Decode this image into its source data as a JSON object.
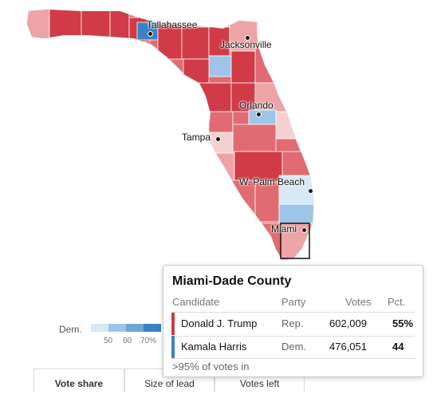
{
  "map": {
    "state": "Florida",
    "colors": {
      "rep_strong": "#d03b47",
      "rep_mid": "#e06b72",
      "rep_light": "#eea3a6",
      "rep_faint": "#f6cfd0",
      "dem_light": "#d7e8f6",
      "dem_mid": "#9ec5e8",
      "dem_strong": "#3b82c4",
      "boundary": "#ffffff",
      "highlight": "#121212"
    },
    "cities": [
      {
        "name": "Tallahassee"
      },
      {
        "name": "Jacksonville"
      },
      {
        "name": "Orlando"
      },
      {
        "name": "Tampa"
      },
      {
        "name": "W. Palm Beach"
      },
      {
        "name": "Miami"
      }
    ],
    "highlighted_county": "Miami-Dade County"
  },
  "legend": {
    "dem_label": "Dem.",
    "ticks": [
      "50",
      "60",
      "70%"
    ],
    "swatch_colors": [
      "#d7e8f6",
      "#9ec5e8",
      "#6fa6d8",
      "#3b82c4",
      "#2166ac"
    ]
  },
  "tabs": [
    {
      "label": "Vote share",
      "active": true
    },
    {
      "label": "Size of lead",
      "active": false
    },
    {
      "label": "Votes left",
      "active": false
    }
  ],
  "tooltip": {
    "title": "Miami-Dade County",
    "headers": {
      "candidate": "Candidate",
      "party": "Party",
      "votes": "Votes",
      "pct": "Pct."
    },
    "rows": [
      {
        "candidate": "Donald J. Trump",
        "party": "Rep.",
        "votes": "602,009",
        "pct": "55%",
        "color": "#d03b47",
        "winner": true
      },
      {
        "candidate": "Kamala Harris",
        "party": "Dem.",
        "votes": "476,051",
        "pct": "44",
        "color": "#3b82c4",
        "winner": false
      }
    ],
    "footer": ">95% of votes in"
  }
}
